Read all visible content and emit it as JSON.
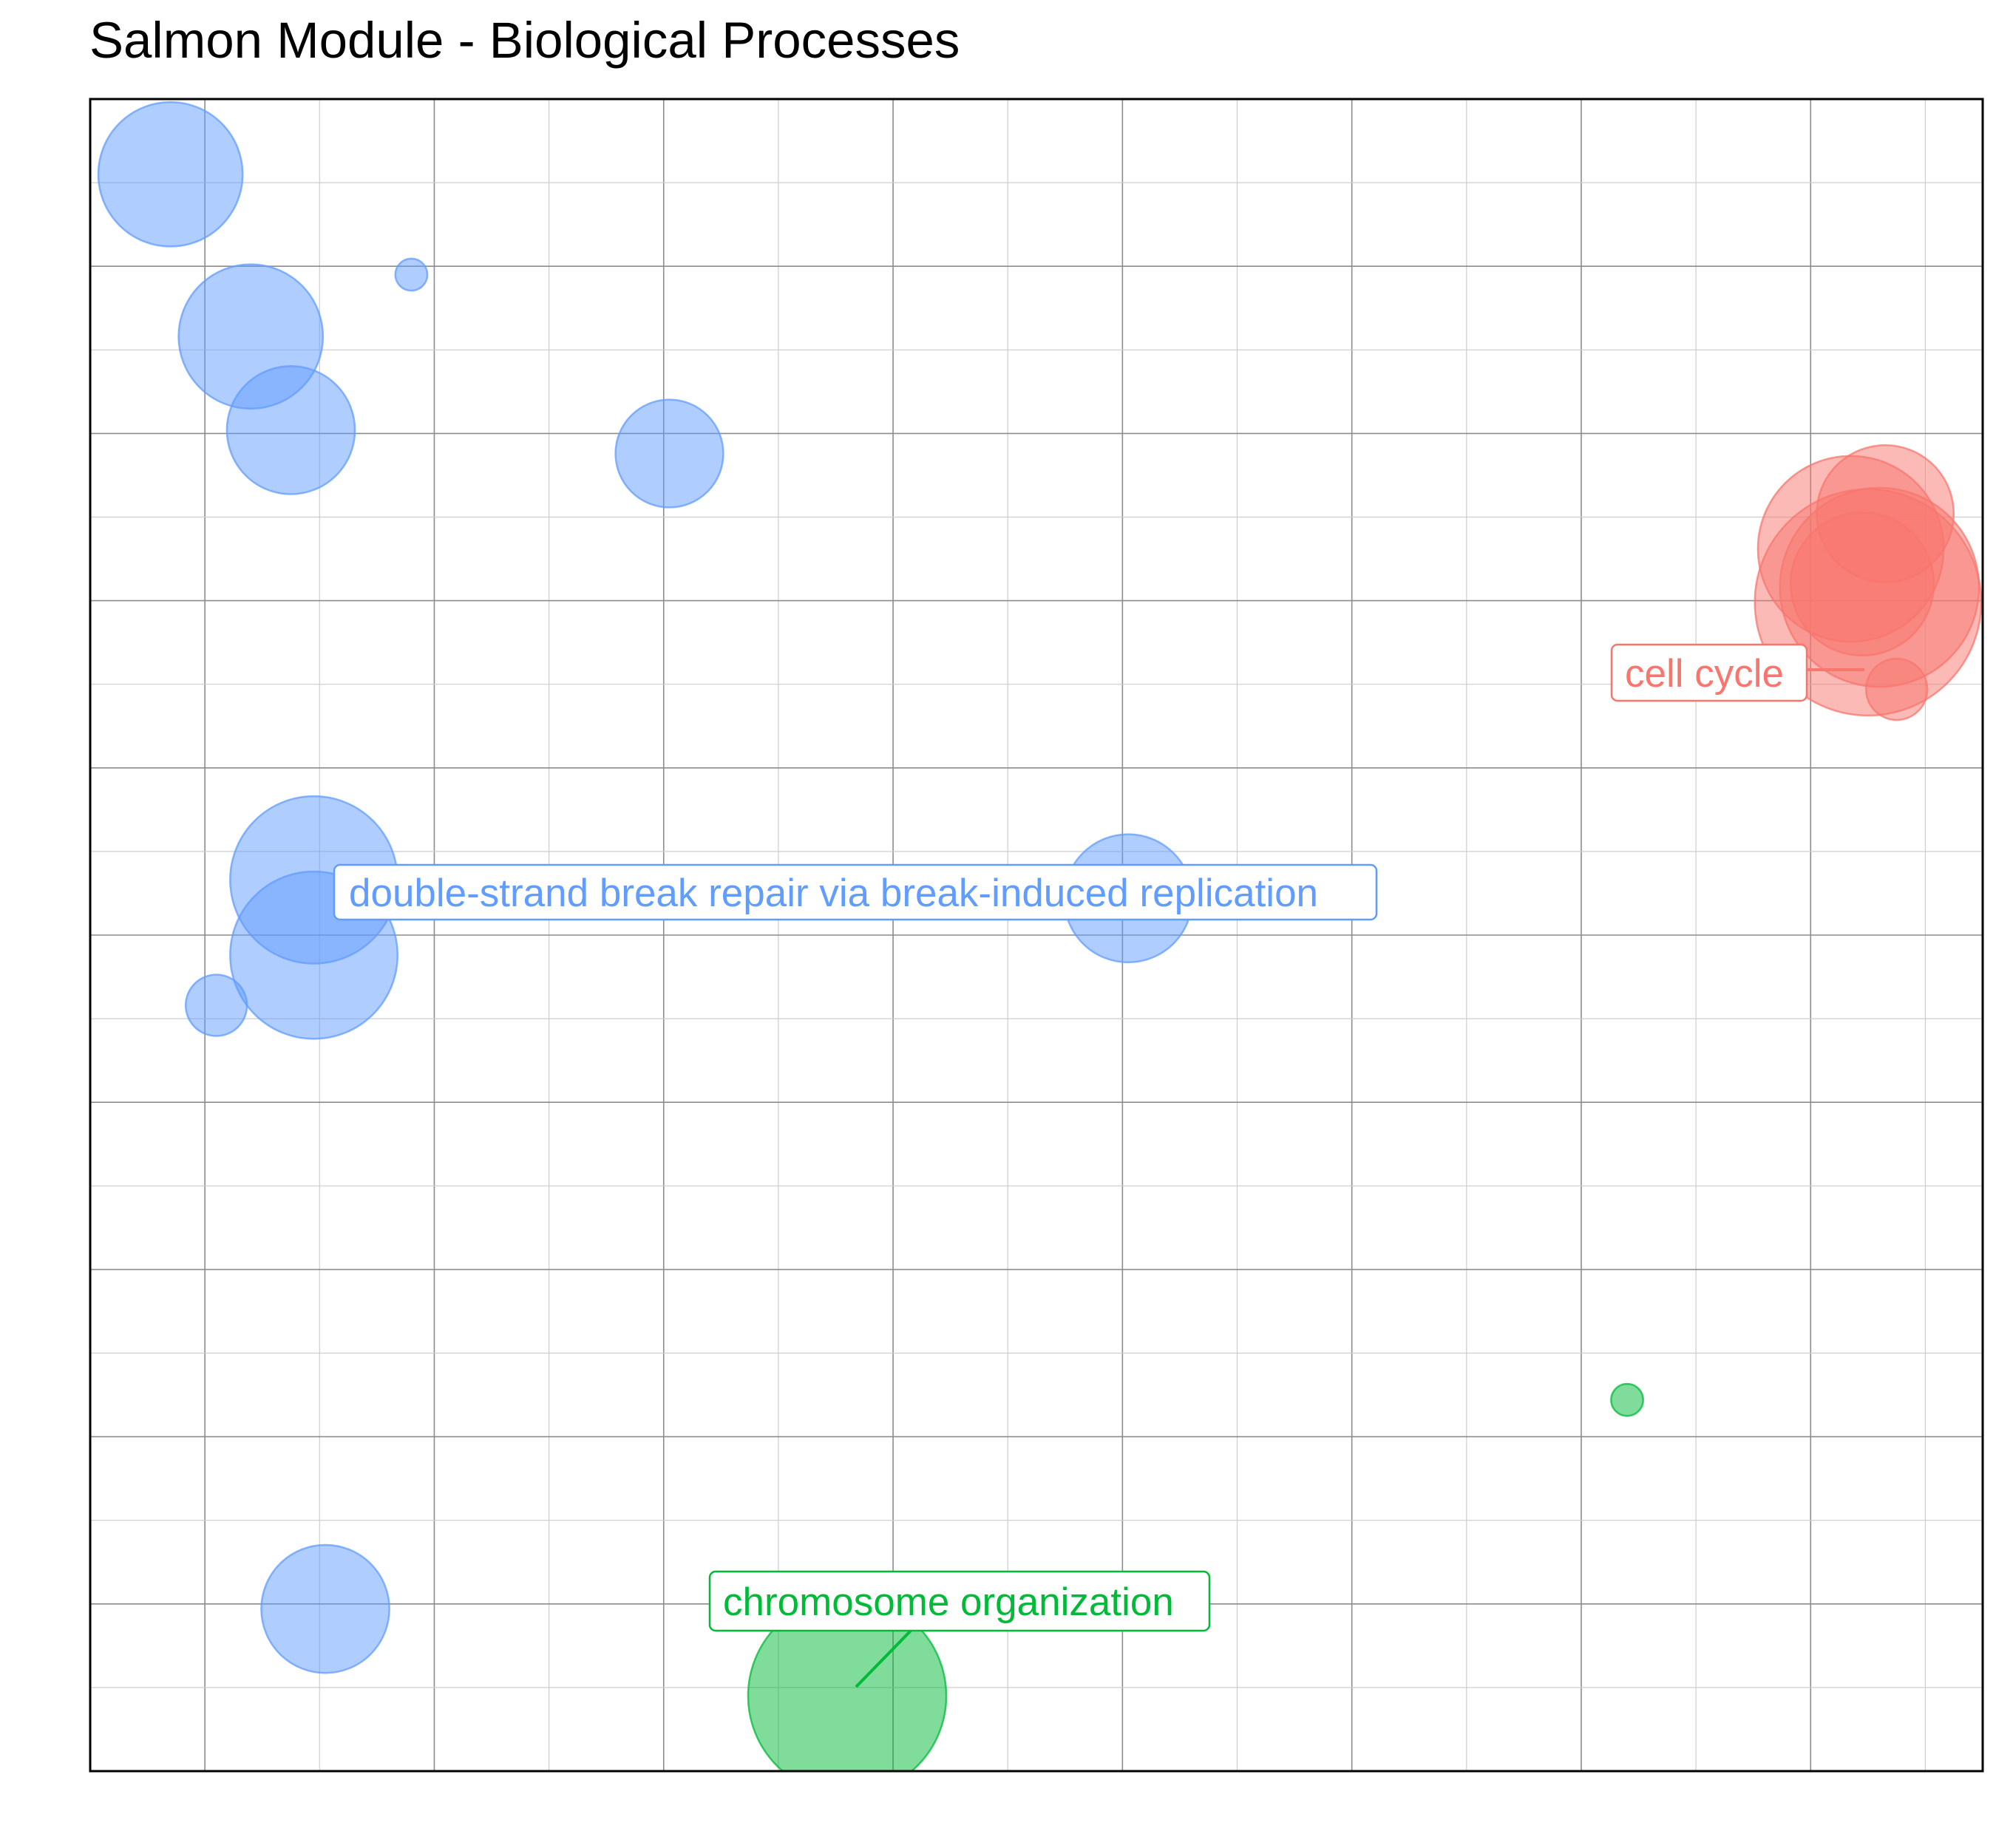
{
  "chart_data": {
    "type": "scatter",
    "title": "Salmon Module - Biological Processes",
    "xlabel": "",
    "ylabel": "",
    "xlim": [
      0,
      16.5
    ],
    "ylim": [
      0,
      10
    ],
    "grid": true,
    "colors": {
      "blue": "#619CFF",
      "red": "#F8766D",
      "green": "#00BA38"
    },
    "points": [
      {
        "x": 0.7,
        "y": 9.55,
        "size": 61,
        "group": "blue"
      },
      {
        "x": 1.4,
        "y": 8.58,
        "size": 61,
        "group": "blue"
      },
      {
        "x": 2.8,
        "y": 8.95,
        "size": 3,
        "group": "blue"
      },
      {
        "x": 1.75,
        "y": 8.02,
        "size": 48,
        "group": "blue"
      },
      {
        "x": 5.05,
        "y": 7.88,
        "size": 34,
        "group": "blue"
      },
      {
        "x": 1.95,
        "y": 5.33,
        "size": 82,
        "group": "blue"
      },
      {
        "x": 1.95,
        "y": 4.88,
        "size": 82,
        "group": "blue"
      },
      {
        "x": 9.05,
        "y": 5.22,
        "size": 48,
        "group": "blue"
      },
      {
        "x": 1.1,
        "y": 4.58,
        "size": 11,
        "group": "blue"
      },
      {
        "x": 2.05,
        "y": 0.97,
        "size": 48,
        "group": "blue"
      },
      {
        "x": 15.5,
        "y": 6.99,
        "size": 150,
        "group": "red"
      },
      {
        "x": 15.45,
        "y": 7.1,
        "size": 60,
        "group": "red"
      },
      {
        "x": 15.35,
        "y": 7.31,
        "size": 101,
        "group": "red"
      },
      {
        "x": 15.6,
        "y": 7.08,
        "size": 116,
        "group": "red"
      },
      {
        "x": 15.65,
        "y": 7.52,
        "size": 55,
        "group": "red"
      },
      {
        "x": 15.75,
        "y": 6.47,
        "size": 11,
        "group": "red"
      },
      {
        "x": 6.6,
        "y": 0.45,
        "size": 115,
        "group": "green"
      },
      {
        "x": 13.4,
        "y": 2.22,
        "size": 3,
        "group": "green"
      }
    ],
    "annotations": [
      {
        "text": "double-strand break repair via break-induced replication",
        "group": "blue"
      },
      {
        "text": "cell cycle",
        "group": "red"
      },
      {
        "text": "chromosome organization",
        "group": "green"
      }
    ]
  }
}
